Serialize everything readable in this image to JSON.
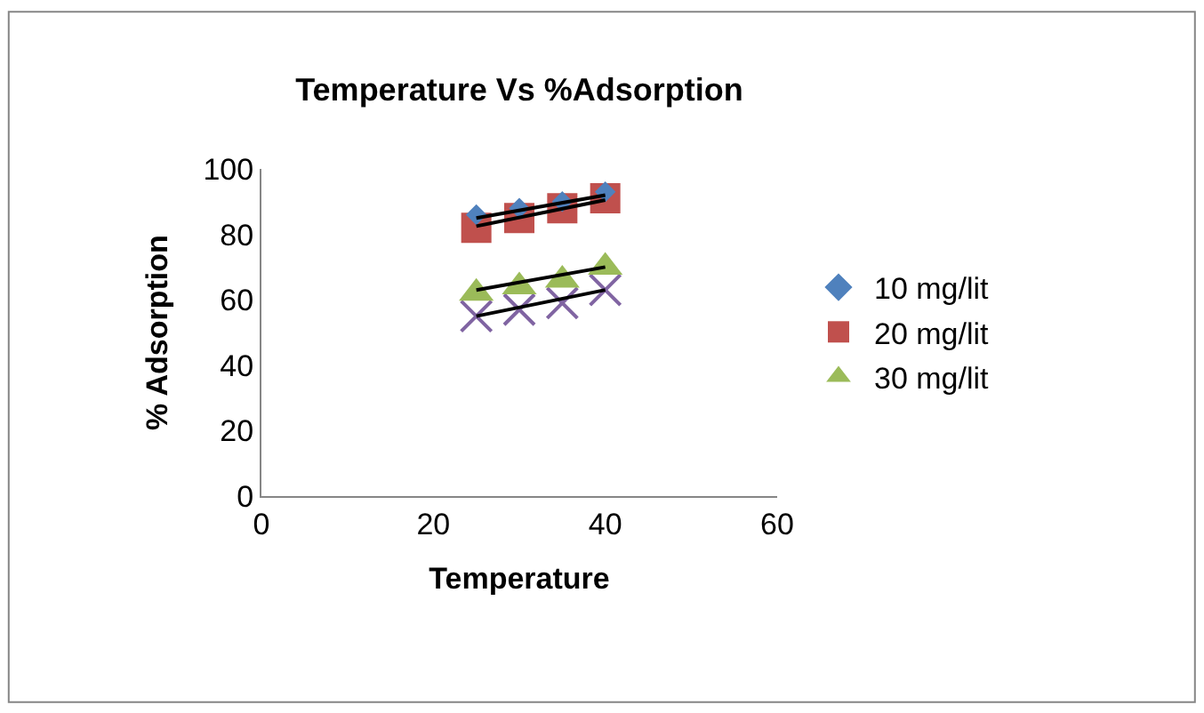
{
  "chart_data": {
    "type": "scatter",
    "title": "Temperature Vs %Adsorption",
    "xlabel": "Temperature",
    "ylabel": "% Adsorption",
    "xlim": [
      0,
      60
    ],
    "xticks": [
      0,
      20,
      40,
      60
    ],
    "ylim": [
      0,
      100
    ],
    "yticks": [
      0,
      20,
      40,
      60,
      80,
      100
    ],
    "legend": "right",
    "series": [
      {
        "name": "10 mg/lit",
        "color": "#4f81bd",
        "marker": "diamond",
        "x": [
          25,
          30,
          35,
          40
        ],
        "values": [
          86,
          88,
          90,
          93
        ]
      },
      {
        "name": "20 mg/lit",
        "color": "#c0504d",
        "marker": "square",
        "x": [
          25,
          30,
          35,
          40
        ],
        "values": [
          82,
          85,
          88,
          91
        ]
      },
      {
        "name": "30 mg/lit",
        "color": "#9bbb59",
        "marker": "triangle",
        "x": [
          25,
          30,
          35,
          40
        ],
        "values": [
          62,
          64,
          66,
          70
        ]
      },
      {
        "color": "#8064a2",
        "marker": "cross",
        "x": [
          25,
          30,
          35,
          40
        ],
        "values": [
          55,
          57,
          59,
          63
        ]
      },
      {
        "type": "line",
        "color": "#000000",
        "marker": "none",
        "x": [
          25,
          40
        ],
        "values": [
          85,
          92
        ]
      },
      {
        "type": "line",
        "color": "#000000",
        "marker": "none",
        "x": [
          25,
          40
        ],
        "values": [
          82.5,
          90.5
        ]
      },
      {
        "type": "line",
        "color": "#000000",
        "marker": "none",
        "x": [
          25,
          40
        ],
        "values": [
          63,
          70
        ]
      },
      {
        "type": "line",
        "color": "#000000",
        "marker": "none",
        "x": [
          25,
          40
        ],
        "values": [
          55,
          63
        ]
      }
    ]
  }
}
